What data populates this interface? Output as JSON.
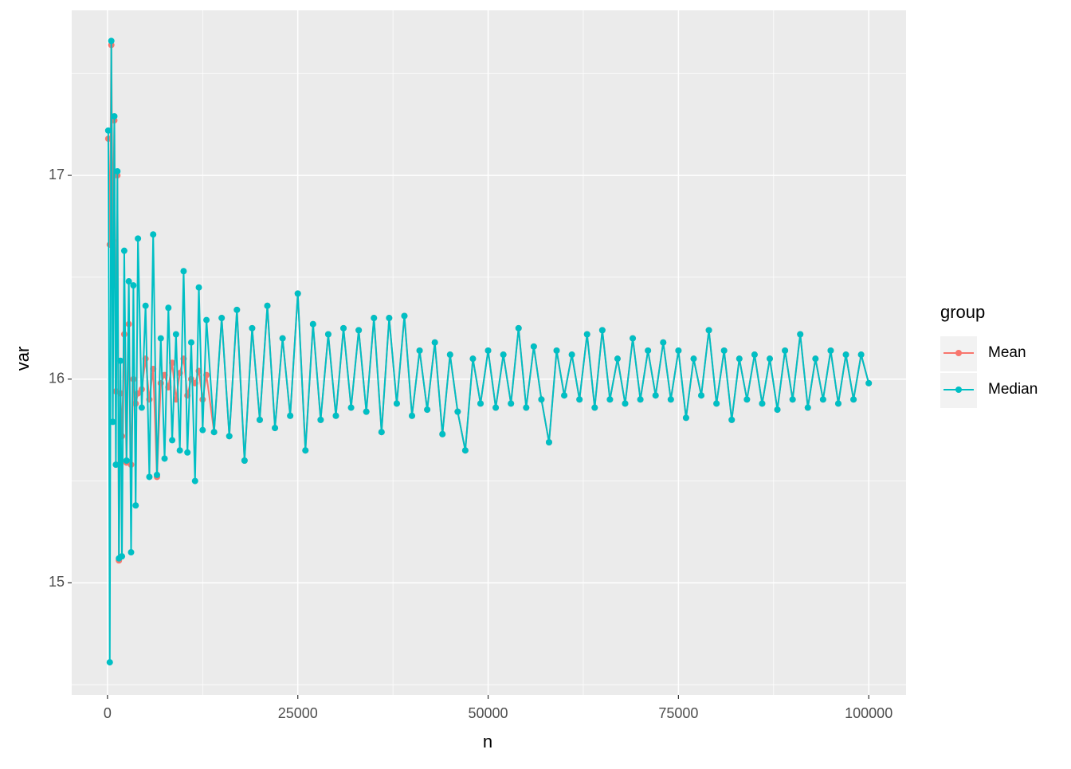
{
  "chart_data": {
    "type": "line",
    "x_label": "n",
    "y_label": "var",
    "legend_title": "group",
    "legend_position": "right",
    "xlim": [
      -4700,
      104900
    ],
    "ylim": [
      14.45,
      17.81
    ],
    "xticks": [
      0,
      25000,
      50000,
      75000,
      100000
    ],
    "yticks": [
      15,
      16,
      17
    ],
    "xminor": [
      12500,
      37500,
      62500,
      87500
    ],
    "yminor": [
      14.5,
      15.5,
      16.5,
      17.5
    ],
    "grid": true,
    "markers": true,
    "x": [
      100,
      300,
      500,
      700,
      900,
      1100,
      1300,
      1500,
      1700,
      1900,
      2200,
      2500,
      2800,
      3100,
      3400,
      3700,
      4000,
      4500,
      5000,
      5500,
      6000,
      6500,
      7000,
      7500,
      8000,
      8500,
      9000,
      9500,
      10000,
      10500,
      11000,
      11500,
      12000,
      12500,
      13000,
      14000,
      15000,
      16000,
      17000,
      18000,
      19000,
      20000,
      21000,
      22000,
      23000,
      24000,
      25000,
      26000,
      27000,
      28000,
      29000,
      30000,
      31000,
      32000,
      33000,
      34000,
      35000,
      36000,
      37000,
      38000,
      39000,
      40000,
      41000,
      42000,
      43000,
      44000,
      45000,
      46000,
      47000,
      48000,
      49000,
      50000,
      51000,
      52000,
      53000,
      54000,
      55000,
      56000,
      57000,
      58000,
      59000,
      60000,
      61000,
      62000,
      63000,
      64000,
      65000,
      66000,
      67000,
      68000,
      69000,
      70000,
      71000,
      72000,
      73000,
      74000,
      75000,
      76000,
      77000,
      78000,
      79000,
      80000,
      81000,
      82000,
      83000,
      84000,
      85000,
      86000,
      87000,
      88000,
      89000,
      90000,
      91000,
      92000,
      93000,
      94000,
      95000,
      96000,
      97000,
      98000,
      99000,
      100000
    ],
    "series": [
      {
        "name": "Mean",
        "color": "#F8766D",
        "values": [
          17.18,
          16.66,
          17.64,
          16.68,
          17.27,
          15.94,
          17.0,
          15.11,
          15.93,
          15.72,
          16.22,
          15.59,
          16.27,
          15.58,
          16.0,
          15.88,
          15.93,
          15.95,
          16.1,
          15.9,
          16.05,
          15.52,
          15.98,
          16.02,
          15.96,
          16.08,
          15.9,
          16.03,
          16.1,
          15.92,
          16.0,
          15.98,
          16.04,
          15.9,
          16.02,
          15.74,
          16.3,
          15.72,
          16.34,
          15.6,
          16.25,
          15.8,
          16.36,
          15.76,
          16.2,
          15.82,
          16.42,
          15.65,
          16.27,
          15.8,
          16.22,
          15.82,
          16.25,
          15.86,
          16.24,
          15.84,
          16.3,
          15.74,
          16.3,
          15.88,
          16.31,
          15.82,
          16.14,
          15.85,
          16.18,
          15.73,
          16.12,
          15.84,
          15.65,
          16.1,
          15.88,
          16.14,
          15.86,
          16.12,
          15.88,
          16.25,
          15.86,
          16.16,
          15.9,
          15.69,
          16.14,
          15.92,
          16.12,
          15.9,
          16.22,
          15.86,
          16.24,
          15.9,
          16.1,
          15.88,
          16.2,
          15.9,
          16.14,
          15.92,
          16.18,
          15.9,
          16.14,
          15.81,
          16.1,
          15.92,
          16.24,
          15.88,
          16.14,
          15.8,
          16.1,
          15.9,
          16.12,
          15.88,
          16.1,
          15.85,
          16.14,
          15.9,
          16.22,
          15.86,
          16.1,
          15.9,
          16.14,
          15.88,
          16.12,
          15.9,
          16.12,
          15.98
        ]
      },
      {
        "name": "Median",
        "color": "#00BFC4",
        "values": [
          17.22,
          14.61,
          17.66,
          15.79,
          17.29,
          15.58,
          17.02,
          15.12,
          16.09,
          15.13,
          16.63,
          15.6,
          16.48,
          15.15,
          16.46,
          15.38,
          16.69,
          15.86,
          16.36,
          15.52,
          16.71,
          15.53,
          16.2,
          15.61,
          16.35,
          15.7,
          16.22,
          15.65,
          16.53,
          15.64,
          16.18,
          15.5,
          16.45,
          15.75,
          16.29,
          15.74,
          16.3,
          15.72,
          16.34,
          15.6,
          16.25,
          15.8,
          16.36,
          15.76,
          16.2,
          15.82,
          16.42,
          15.65,
          16.27,
          15.8,
          16.22,
          15.82,
          16.25,
          15.86,
          16.24,
          15.84,
          16.3,
          15.74,
          16.3,
          15.88,
          16.31,
          15.82,
          16.14,
          15.85,
          16.18,
          15.73,
          16.12,
          15.84,
          15.65,
          16.1,
          15.88,
          16.14,
          15.86,
          16.12,
          15.88,
          16.25,
          15.86,
          16.16,
          15.9,
          15.69,
          16.14,
          15.92,
          16.12,
          15.9,
          16.22,
          15.86,
          16.24,
          15.9,
          16.1,
          15.88,
          16.2,
          15.9,
          16.14,
          15.92,
          16.18,
          15.9,
          16.14,
          15.81,
          16.1,
          15.92,
          16.24,
          15.88,
          16.14,
          15.8,
          16.1,
          15.9,
          16.12,
          15.88,
          16.1,
          15.85,
          16.14,
          15.9,
          16.22,
          15.86,
          16.1,
          15.9,
          16.14,
          15.88,
          16.12,
          15.9,
          16.12,
          15.98
        ]
      }
    ]
  }
}
